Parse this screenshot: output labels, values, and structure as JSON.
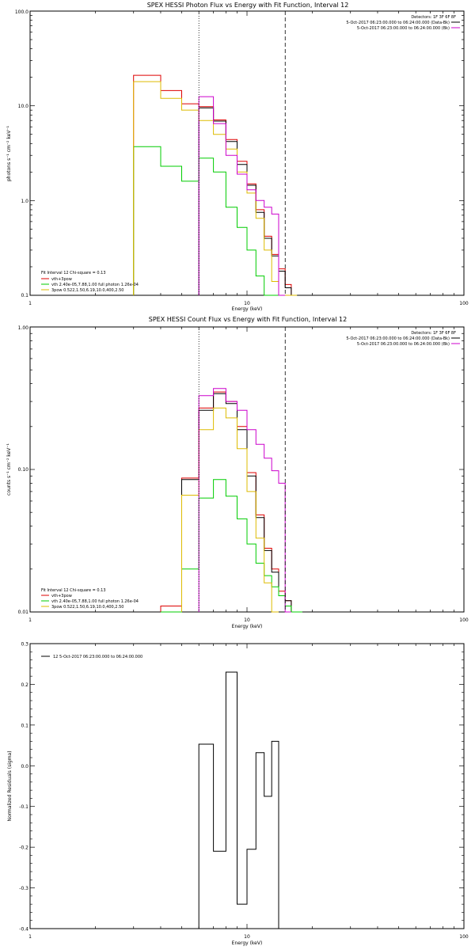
{
  "chart_data": [
    {
      "type": "line",
      "title": "SPEX HESSI Photon Flux vs Energy with Fit Function, Interval 12",
      "xlabel": "Energy (keV)",
      "ylabel": "photons s⁻¹ cm⁻² keV⁻¹",
      "xscale": "log",
      "yscale": "log",
      "xlim": [
        1,
        100
      ],
      "ylim": [
        0.1,
        100
      ],
      "xticks": [
        "1",
        "10",
        "100"
      ],
      "yticks": [
        "0.1",
        "1.0",
        "10.0",
        "100.0"
      ],
      "vlines": [
        {
          "x": 6,
          "style": "dotted"
        },
        {
          "x": 15,
          "style": "dashed"
        }
      ],
      "legend_topright": [
        "Detectors: 1F 3F 6F 8F",
        "5-Oct-2017 06:23:00.000 to 06:24:00.000 (Data-Bk)",
        "5-Oct-2017 06:23:00.000 to 06:24:00.000 (Bk)"
      ],
      "legend_topright_colors": [
        "",
        "#000000",
        "#cc00cc"
      ],
      "legend_bottomleft_header": "Fit Interval 12   Chi-square = 0.13",
      "legend_bottomleft": [
        "vth+3pow",
        "vth 2.40e-05,7.88,1.00  full photon 1.26e-04",
        "3pow 0.522,1.50,6.19,10.0,400,2.50"
      ],
      "legend_bottomleft_colors": [
        "#dd0000",
        "#00cc00",
        "#ddbb00"
      ],
      "bin_edges": [
        3,
        4,
        5,
        6,
        7,
        8,
        9,
        10,
        11,
        12,
        13,
        14,
        15,
        16,
        17
      ],
      "series": [
        {
          "name": "vth+3pow",
          "color": "#dd0000",
          "values": [
            21,
            14.5,
            10.5,
            9.8,
            7.1,
            4.4,
            2.6,
            1.5,
            0.8,
            0.42,
            0.27,
            0.19,
            0.13,
            0.1
          ]
        },
        {
          "name": "",
          "color": "#000000",
          "values": [
            null,
            null,
            null,
            9.5,
            6.9,
            4.2,
            2.4,
            1.45,
            0.75,
            0.4,
            0.26,
            0.18,
            0.12,
            0.1
          ]
        },
        {
          "name": "vth 2.40e-05,7.88,1.00  full photon 1.26e-04",
          "color": "#00cc00",
          "values": [
            3.7,
            2.3,
            1.6,
            2.8,
            2.0,
            0.85,
            0.52,
            0.3,
            0.16,
            0.1,
            0.1,
            0.1,
            0.1,
            0.1
          ]
        },
        {
          "name": "3pow 0.522,1.50,6.19,10.0,400,2.50",
          "color": "#ddbb00",
          "values": [
            18,
            12,
            9,
            7,
            5,
            3.5,
            2.0,
            1.2,
            0.65,
            0.3,
            0.14,
            0.1,
            0.1,
            0.1
          ]
        },
        {
          "name": "",
          "color": "#cc00cc",
          "values": [
            null,
            null,
            null,
            12.5,
            6.5,
            3.0,
            1.9,
            1.3,
            1.0,
            0.85,
            0.72,
            0.1,
            null,
            null
          ]
        }
      ]
    },
    {
      "type": "line",
      "title": "SPEX HESSI Count Flux vs Energy with Fit Function, Interval 12",
      "xlabel": "Energy (keV)",
      "ylabel": "counts s⁻¹ cm⁻² keV⁻¹",
      "xscale": "log",
      "yscale": "log",
      "xlim": [
        1,
        100
      ],
      "ylim": [
        0.01,
        1.0
      ],
      "xticks": [
        "1",
        "10",
        "100"
      ],
      "yticks": [
        "0.01",
        "0.10",
        "1.00"
      ],
      "vlines": [
        {
          "x": 6,
          "style": "dotted"
        },
        {
          "x": 15,
          "style": "dashed"
        }
      ],
      "legend_topright": [
        "Detectors: 1F 3F 6F 8F",
        "5-Oct-2017 06:23:00.000 to 06:24:00.000 (Data-Bk)",
        "5-Oct-2017 06:23:00.000 to 06:24:00.000 (Bk)"
      ],
      "legend_topright_colors": [
        "",
        "#000000",
        "#cc00cc"
      ],
      "legend_bottomleft_header": "Fit Interval 12   Chi-square = 0.13",
      "legend_bottomleft": [
        "vth+3pow",
        "vth 2.40e-05,7.88,1.00  full photon 1.26e-04",
        "3pow 0.522,1.50,6.19,10.0,400,2.50"
      ],
      "legend_bottomleft_colors": [
        "#dd0000",
        "#00cc00",
        "#ddbb00"
      ],
      "bin_edges": [
        4,
        5,
        6,
        7,
        8,
        9,
        10,
        11,
        12,
        13,
        14,
        15,
        16,
        17,
        18
      ],
      "series": [
        {
          "name": "vth+3pow",
          "color": "#dd0000",
          "values": [
            0.011,
            0.087,
            0.27,
            0.35,
            0.3,
            0.2,
            0.095,
            0.048,
            0.028,
            0.02,
            0.014,
            0.012,
            0.01,
            0.01
          ]
        },
        {
          "name": "",
          "color": "#000000",
          "values": [
            null,
            0.085,
            0.26,
            0.34,
            0.29,
            0.19,
            0.09,
            0.046,
            0.027,
            0.019,
            0.013,
            0.012,
            null,
            null
          ]
        },
        {
          "name": "vth 2.40e-05,7.88,1.00  full photon 1.26e-04",
          "color": "#00cc00",
          "values": [
            0.01,
            0.02,
            0.063,
            0.085,
            0.065,
            0.045,
            0.03,
            0.022,
            0.018,
            0.015,
            0.013,
            0.011,
            0.01,
            0.01
          ]
        },
        {
          "name": "3pow 0.522,1.50,6.19,10.0,400,2.50",
          "color": "#ddbb00",
          "values": [
            null,
            0.066,
            0.19,
            0.27,
            0.23,
            0.14,
            0.07,
            0.033,
            0.016,
            0.01,
            null,
            null,
            null,
            null
          ]
        },
        {
          "name": "",
          "color": "#cc00cc",
          "values": [
            null,
            null,
            0.33,
            0.37,
            0.3,
            0.26,
            0.19,
            0.15,
            0.12,
            0.098,
            0.08,
            0.01,
            null,
            null
          ]
        }
      ]
    },
    {
      "type": "line",
      "title": "",
      "xlabel": "Energy (keV)",
      "ylabel": "Normalized Residuals (sigma)",
      "xscale": "log",
      "yscale": "linear",
      "xlim": [
        1,
        100
      ],
      "ylim": [
        -0.4,
        0.3
      ],
      "xticks": [
        "1",
        "10",
        "100"
      ],
      "yticks": [
        "-0.4",
        "-0.3",
        "-0.2",
        "-0.1",
        "0.0",
        "0.1",
        "0.2",
        "0.3"
      ],
      "legend": "12  5-Oct-2017 06:23:00.000 to 06:24:00.000",
      "bin_edges": [
        6,
        7,
        8,
        9,
        10,
        11,
        12,
        13,
        14,
        15
      ],
      "series": [
        {
          "name": "12  5-Oct-2017 06:23:00.000 to 06:24:00.000",
          "color": "#000000",
          "values": [
            0.053,
            -0.21,
            0.23,
            -0.34,
            -0.205,
            0.032,
            -0.075,
            0.06,
            -0.4
          ]
        }
      ]
    }
  ]
}
